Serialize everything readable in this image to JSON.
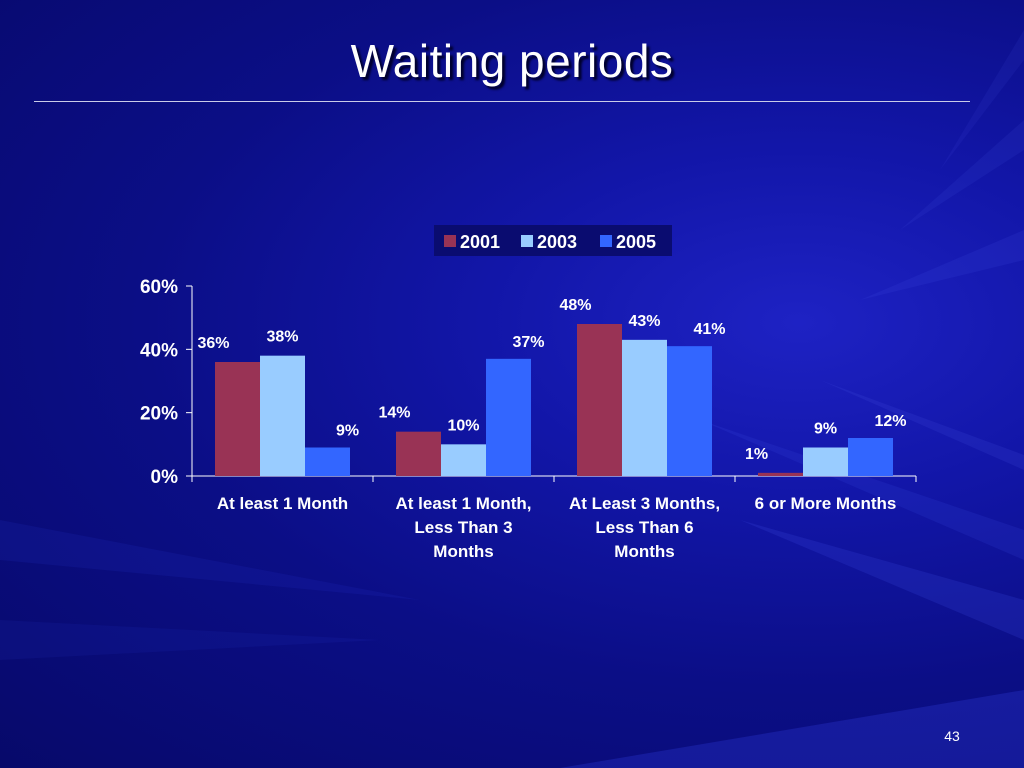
{
  "slide": {
    "title": "Waiting periods",
    "page_number": "43"
  },
  "colors": {
    "background": "#0b0e86",
    "series_2001": "#993355",
    "series_2003": "#99ccff",
    "series_2005": "#3366ff",
    "text": "#ffffff"
  },
  "chart_data": {
    "type": "bar",
    "title": "",
    "xlabel": "",
    "ylabel": "",
    "ylim": [
      0,
      0.6
    ],
    "yticks": [
      "0%",
      "20%",
      "40%",
      "60%"
    ],
    "ytick_values": [
      0,
      0.2,
      0.4,
      0.6
    ],
    "grid": false,
    "legend_position": "top-center",
    "categories": [
      [
        "At least 1 Month"
      ],
      [
        "At least 1 Month,",
        "Less Than 3",
        "Months"
      ],
      [
        "At Least 3 Months,",
        "Less Than 6",
        "Months"
      ],
      [
        "6 or More Months"
      ]
    ],
    "series": [
      {
        "name": "2001",
        "color": "#993355",
        "values": [
          0.36,
          0.14,
          0.48,
          0.01
        ],
        "labels": [
          "36%",
          "14%",
          "48%",
          "1%"
        ]
      },
      {
        "name": "2003",
        "color": "#99ccff",
        "values": [
          0.38,
          0.1,
          0.43,
          0.09
        ],
        "labels": [
          "38%",
          "10%",
          "43%",
          "9%"
        ]
      },
      {
        "name": "2005",
        "color": "#3366ff",
        "values": [
          0.09,
          0.37,
          0.41,
          0.12
        ],
        "labels": [
          "9%",
          "37%",
          "41%",
          "12%"
        ]
      }
    ]
  }
}
